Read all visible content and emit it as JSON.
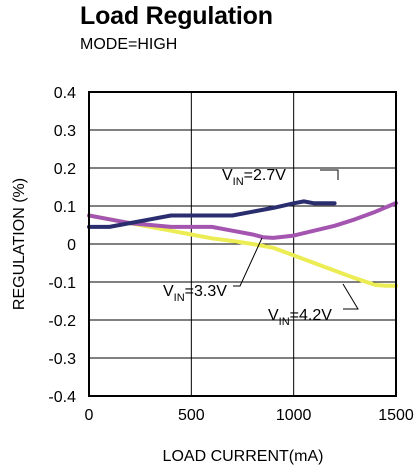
{
  "chart_data": {
    "type": "line",
    "title": "Load Regulation",
    "subtitle": "MODE=HIGH",
    "xlabel": "LOAD CURRENT(mA)",
    "ylabel": "REGULATION (%)",
    "xlim": [
      0,
      1500
    ],
    "ylim": [
      -0.4,
      0.4
    ],
    "xticks": [
      0,
      500,
      1000,
      1500
    ],
    "xtick_labels": [
      "0",
      "500",
      "1000",
      "1500"
    ],
    "yticks": [
      0.4,
      0.3,
      0.2,
      0.1,
      0,
      -0.1,
      -0.2,
      -0.3,
      -0.4
    ],
    "ytick_labels": [
      "0.4",
      "0.3",
      "0.2",
      "0.1",
      "0",
      "-0.1",
      "-0.2",
      "-0.3",
      "-0.4"
    ],
    "grid": true,
    "series": [
      {
        "name": "VIN=2.7V",
        "label_main": "V",
        "label_sub": "IN",
        "label_rest": "=2.7V",
        "color": "#2a2d6e",
        "x": [
          0,
          100,
          200,
          300,
          400,
          500,
          600,
          700,
          800,
          900,
          1000,
          1050,
          1100,
          1200
        ],
        "y": [
          0.045,
          0.045,
          0.055,
          0.065,
          0.075,
          0.075,
          0.075,
          0.075,
          0.085,
          0.095,
          0.107,
          0.112,
          0.107,
          0.107
        ]
      },
      {
        "name": "VIN=3.3V",
        "label_main": "V",
        "label_sub": "IN",
        "label_rest": "=3.3V",
        "color": "#a455b0",
        "x": [
          0,
          100,
          200,
          300,
          400,
          500,
          600,
          700,
          800,
          850,
          900,
          1000,
          1100,
          1200,
          1300,
          1400,
          1500
        ],
        "y": [
          0.075,
          0.065,
          0.055,
          0.05,
          0.045,
          0.045,
          0.045,
          0.035,
          0.025,
          0.018,
          0.016,
          0.022,
          0.035,
          0.048,
          0.065,
          0.085,
          0.108
        ]
      },
      {
        "name": "VIN=4.2V",
        "label_main": "V",
        "label_sub": "IN",
        "label_rest": "=4.2V",
        "color": "#ecec55",
        "x": [
          0,
          100,
          200,
          300,
          400,
          500,
          600,
          700,
          800,
          900,
          1000,
          1100,
          1200,
          1300,
          1400,
          1450,
          1500
        ],
        "y": [
          0.075,
          0.065,
          0.055,
          0.045,
          0.035,
          0.025,
          0.015,
          0.008,
          0,
          -0.01,
          -0.03,
          -0.05,
          -0.07,
          -0.09,
          -0.108,
          -0.11,
          -0.11
        ]
      }
    ]
  }
}
